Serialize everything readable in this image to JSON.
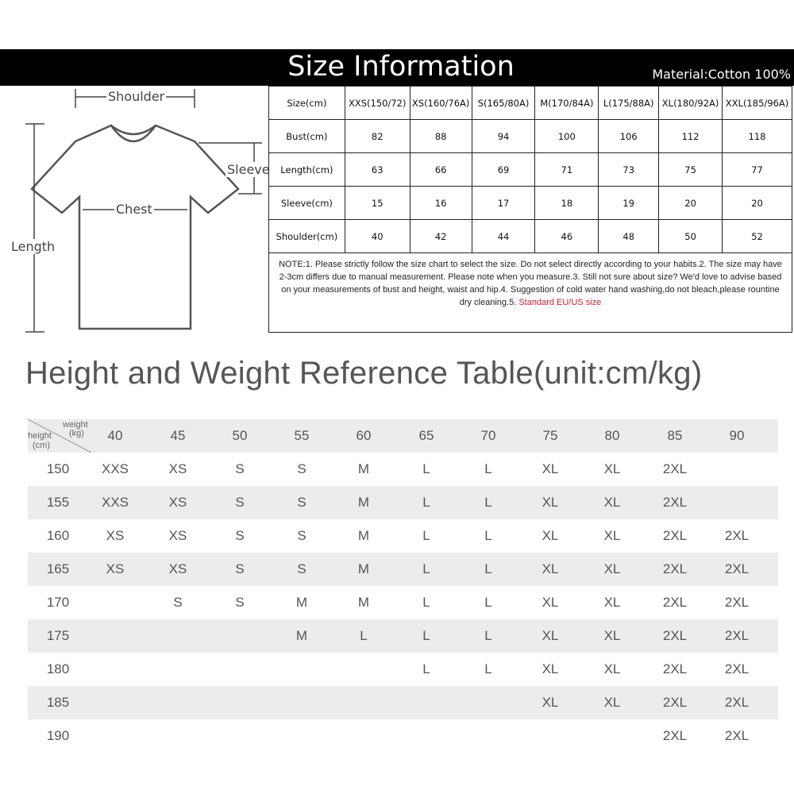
{
  "header": {
    "title": "Size Information",
    "material": "Material:Cotton 100%"
  },
  "diagram": {
    "shoulder": "Shoulder",
    "sleeve": "Sleeve",
    "chest": "Chest",
    "length": "Length"
  },
  "size_table": {
    "headers": [
      "Size(cm)",
      "XXS(150/72)",
      "XS(160/76A)",
      "S(165/80A)",
      "M(170/84A)",
      "L(175/88A)",
      "XL(180/92A)",
      "XXL(185/96A)"
    ],
    "rows": [
      [
        "Bust(cm)",
        "82",
        "88",
        "94",
        "100",
        "106",
        "112",
        "118"
      ],
      [
        "Length(cm)",
        "63",
        "66",
        "69",
        "71",
        "73",
        "75",
        "77"
      ],
      [
        "Sleeve(cm)",
        "15",
        "16",
        "17",
        "18",
        "19",
        "20",
        "20"
      ],
      [
        "Shoulder(cm)",
        "40",
        "42",
        "44",
        "46",
        "48",
        "50",
        "52"
      ]
    ],
    "note": "NOTE:1. Please strictly follow the size chart to select the size. Do not select directly according to your habits.2. The size may have 2-3cm differs due to manual measurement. Please note when you measure.3. Still not sure about size? We'd love to advise based on your measurements of bust and height, waist and hip.4. Suggestion of cold water hand washing,do not bleach,please rountine dry cleaning.5. ",
    "note_highlight": "Standard EU/US size",
    "highlight_color": "#c8202c"
  },
  "reference": {
    "heading": "Height and Weight Reference Table(unit:cm/kg)",
    "corner_weight": "weight",
    "corner_weight_unit": "(kg)",
    "corner_height": "height",
    "corner_height_unit": "(cm)",
    "weights": [
      "40",
      "45",
      "50",
      "55",
      "60",
      "65",
      "70",
      "75",
      "80",
      "85",
      "90"
    ],
    "rows": [
      {
        "height": "150",
        "sizes": [
          "XXS",
          "XS",
          "S",
          "S",
          "M",
          "L",
          "L",
          "XL",
          "XL",
          "2XL",
          ""
        ]
      },
      {
        "height": "155",
        "sizes": [
          "XXS",
          "XS",
          "S",
          "S",
          "M",
          "L",
          "L",
          "XL",
          "XL",
          "2XL",
          ""
        ]
      },
      {
        "height": "160",
        "sizes": [
          "XS",
          "XS",
          "S",
          "S",
          "M",
          "L",
          "L",
          "XL",
          "XL",
          "2XL",
          "2XL"
        ]
      },
      {
        "height": "165",
        "sizes": [
          "XS",
          "XS",
          "S",
          "S",
          "M",
          "L",
          "L",
          "XL",
          "XL",
          "2XL",
          "2XL"
        ]
      },
      {
        "height": "170",
        "sizes": [
          "",
          "S",
          "S",
          "M",
          "M",
          "L",
          "L",
          "XL",
          "XL",
          "2XL",
          "2XL"
        ]
      },
      {
        "height": "175",
        "sizes": [
          "",
          "",
          "",
          "M",
          "L",
          "L",
          "L",
          "XL",
          "XL",
          "2XL",
          "2XL"
        ]
      },
      {
        "height": "180",
        "sizes": [
          "",
          "",
          "",
          "",
          "",
          "L",
          "L",
          "XL",
          "XL",
          "2XL",
          "2XL"
        ]
      },
      {
        "height": "185",
        "sizes": [
          "",
          "",
          "",
          "",
          "",
          "",
          "",
          "XL",
          "XL",
          "2XL",
          "2XL"
        ]
      },
      {
        "height": "190",
        "sizes": [
          "",
          "",
          "",
          "",
          "",
          "",
          "",
          "",
          "",
          "2XL",
          "2XL"
        ]
      }
    ]
  }
}
